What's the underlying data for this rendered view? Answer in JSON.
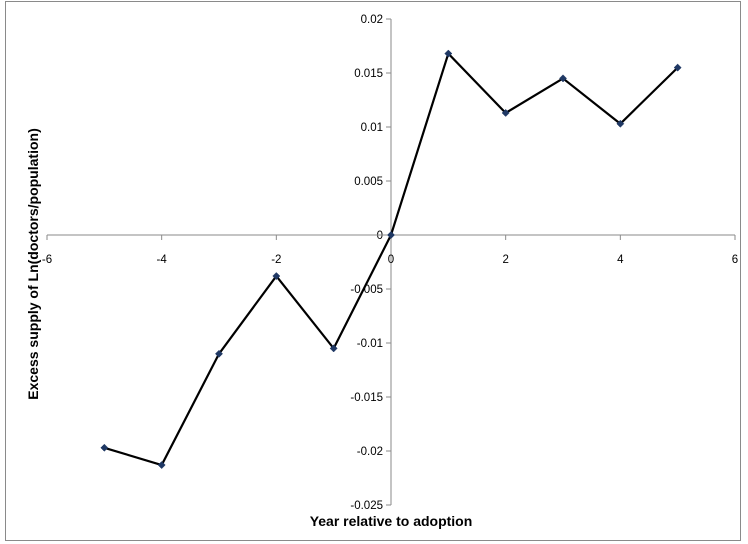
{
  "chart_data": {
    "type": "scatter",
    "mode": "lines+markers",
    "title": "",
    "xlabel": "Year relative to adoption",
    "ylabel": "Excess supply of Ln(doctors/population)",
    "xlim": [
      -6,
      6
    ],
    "ylim": [
      -0.025,
      0.02
    ],
    "xticks": [
      -6,
      -4,
      -2,
      0,
      2,
      4,
      6
    ],
    "xtick_labels": [
      "-6",
      "-4",
      "-2",
      "0",
      "2",
      "4",
      "6"
    ],
    "yticks": [
      0.02,
      0.015,
      0.01,
      0.005,
      0,
      -0.005,
      -0.01,
      -0.015,
      -0.02,
      -0.025
    ],
    "ytick_labels": [
      "0.02",
      "0.015",
      "0.01",
      "0.005",
      "0",
      "-0.005",
      "-0.01",
      "-0.015",
      "-0.02",
      "-0.025"
    ],
    "grid": false,
    "legend": "none",
    "series": [
      {
        "x": [
          -5,
          -4,
          -3,
          -2,
          -1,
          0,
          1,
          2,
          3,
          4,
          5
        ],
        "y": [
          -0.0197,
          -0.0213,
          -0.011,
          -0.0038,
          -0.0105,
          0.0,
          0.0168,
          0.0113,
          0.0145,
          0.0103,
          0.0155
        ],
        "color": "#000000",
        "marker_color": "#1f3864",
        "marker": "diamond"
      }
    ]
  }
}
